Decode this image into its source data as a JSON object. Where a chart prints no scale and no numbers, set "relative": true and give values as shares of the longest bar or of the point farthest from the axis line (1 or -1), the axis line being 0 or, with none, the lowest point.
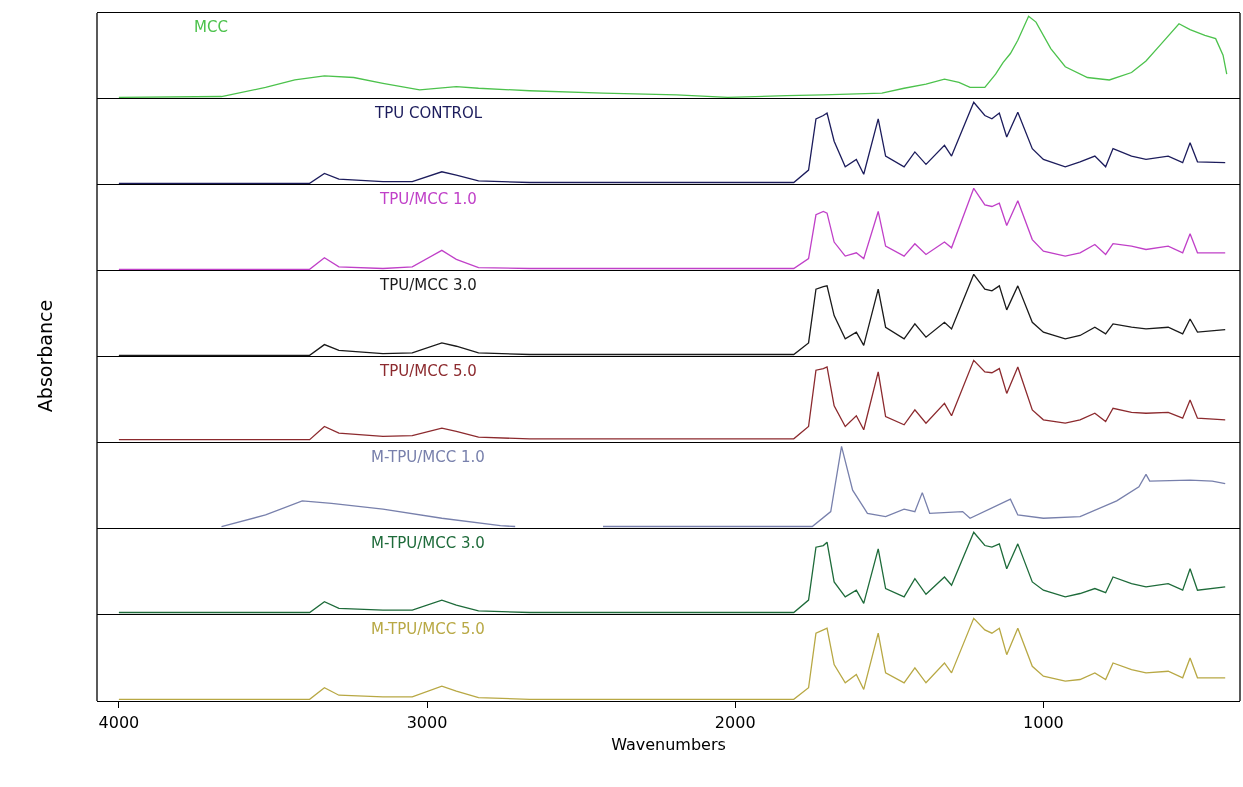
{
  "chart_data": [
    {
      "type": "line",
      "relative": true,
      "xlim": [
        4071,
        362
      ],
      "xticks": [
        4000,
        3000,
        2000,
        1000
      ],
      "tick_labels": false,
      "x": [
        4000,
        3667,
        3524,
        3429,
        3333,
        3238,
        3143,
        3024,
        2905,
        2833,
        2667,
        2429,
        2190,
        2024,
        1833,
        1714,
        1524,
        1452,
        1381,
        1321,
        1274,
        1238,
        1190,
        1155,
        1131,
        1107,
        1083,
        1048,
        1024,
        976,
        929,
        857,
        786,
        714,
        667,
        619,
        560,
        524,
        476,
        441,
        417,
        405
      ],
      "series": [
        {
          "name": "MCC",
          "color": "#4cc24c",
          "values": [
            0.02,
            0.03,
            0.14,
            0.23,
            0.28,
            0.26,
            0.19,
            0.11,
            0.15,
            0.13,
            0.1,
            0.07,
            0.05,
            0.02,
            0.04,
            0.05,
            0.07,
            0.13,
            0.18,
            0.24,
            0.2,
            0.14,
            0.14,
            0.3,
            0.44,
            0.55,
            0.71,
            1,
            0.93,
            0.61,
            0.39,
            0.26,
            0.23,
            0.32,
            0.46,
            0.66,
            0.91,
            0.84,
            0.77,
            0.73,
            0.53,
            0.3
          ]
        }
      ]
    },
    {
      "type": "line",
      "relative": true,
      "xlim": [
        4071,
        362
      ],
      "xticks": [
        4000,
        3000,
        2000,
        1000
      ],
      "tick_labels": false,
      "x": [
        4000,
        3381,
        3333,
        3286,
        3143,
        3048,
        2952,
        2905,
        2833,
        2667,
        1810,
        1762,
        1738,
        1714,
        1702,
        1679,
        1643,
        1607,
        1583,
        1536,
        1512,
        1452,
        1417,
        1381,
        1321,
        1298,
        1226,
        1190,
        1167,
        1143,
        1119,
        1083,
        1036,
        1000,
        929,
        881,
        833,
        798,
        774,
        714,
        667,
        595,
        548,
        524,
        500,
        410
      ],
      "series": [
        {
          "name": "TPU CONTROL",
          "color": "#1c1c5c",
          "values": [
            0.02,
            0.02,
            0.14,
            0.07,
            0.04,
            0.04,
            0.16,
            0.12,
            0.05,
            0.03,
            0.03,
            0.18,
            0.8,
            0.84,
            0.87,
            0.53,
            0.22,
            0.31,
            0.13,
            0.8,
            0.35,
            0.22,
            0.4,
            0.25,
            0.48,
            0.35,
            1,
            0.84,
            0.8,
            0.87,
            0.58,
            0.88,
            0.44,
            0.31,
            0.22,
            0.28,
            0.35,
            0.22,
            0.44,
            0.35,
            0.31,
            0.35,
            0.27,
            0.51,
            0.28,
            0.27
          ]
        }
      ]
    },
    {
      "type": "line",
      "relative": true,
      "xlim": [
        4071,
        362
      ],
      "xticks": [
        4000,
        3000,
        2000,
        1000
      ],
      "tick_labels": false,
      "x": [
        4000,
        3381,
        3333,
        3286,
        3143,
        3048,
        2952,
        2905,
        2833,
        2667,
        1810,
        1762,
        1738,
        1714,
        1702,
        1679,
        1643,
        1607,
        1583,
        1536,
        1512,
        1452,
        1417,
        1381,
        1321,
        1298,
        1226,
        1190,
        1167,
        1143,
        1119,
        1083,
        1036,
        1000,
        929,
        881,
        833,
        798,
        774,
        714,
        667,
        595,
        548,
        524,
        500,
        410
      ],
      "series": [
        {
          "name": "TPU/MCC 1.0",
          "color": "#c040c8",
          "values": [
            0.02,
            0.02,
            0.16,
            0.05,
            0.03,
            0.05,
            0.25,
            0.14,
            0.04,
            0.03,
            0.03,
            0.15,
            0.68,
            0.72,
            0.7,
            0.35,
            0.18,
            0.22,
            0.15,
            0.72,
            0.3,
            0.18,
            0.33,
            0.2,
            0.35,
            0.28,
            1,
            0.8,
            0.78,
            0.82,
            0.55,
            0.85,
            0.38,
            0.24,
            0.18,
            0.22,
            0.32,
            0.2,
            0.33,
            0.3,
            0.26,
            0.3,
            0.22,
            0.45,
            0.22,
            0.22
          ]
        }
      ]
    },
    {
      "type": "line",
      "relative": true,
      "xlim": [
        4071,
        362
      ],
      "xticks": [
        4000,
        3000,
        2000,
        1000
      ],
      "tick_labels": false,
      "x": [
        4000,
        3381,
        3333,
        3286,
        3143,
        3048,
        2952,
        2905,
        2833,
        2667,
        1810,
        1762,
        1738,
        1714,
        1702,
        1679,
        1643,
        1607,
        1583,
        1536,
        1512,
        1452,
        1417,
        1381,
        1321,
        1298,
        1226,
        1190,
        1167,
        1143,
        1119,
        1083,
        1036,
        1000,
        929,
        881,
        833,
        798,
        774,
        714,
        667,
        595,
        548,
        524,
        500,
        410
      ],
      "series": [
        {
          "name": "TPU/MCC 3.0",
          "color": "#1a1a1a",
          "values": [
            0.02,
            0.02,
            0.15,
            0.08,
            0.04,
            0.05,
            0.17,
            0.13,
            0.05,
            0.03,
            0.03,
            0.17,
            0.82,
            0.85,
            0.86,
            0.5,
            0.22,
            0.3,
            0.14,
            0.82,
            0.36,
            0.22,
            0.4,
            0.24,
            0.42,
            0.34,
            1,
            0.82,
            0.8,
            0.86,
            0.57,
            0.86,
            0.42,
            0.3,
            0.22,
            0.26,
            0.36,
            0.28,
            0.4,
            0.36,
            0.34,
            0.36,
            0.28,
            0.46,
            0.3,
            0.33
          ]
        }
      ]
    },
    {
      "type": "line",
      "relative": true,
      "xlim": [
        4071,
        362
      ],
      "xticks": [
        4000,
        3000,
        2000,
        1000
      ],
      "tick_labels": false,
      "x": [
        4000,
        3381,
        3333,
        3286,
        3143,
        3048,
        2952,
        2905,
        2833,
        2667,
        1810,
        1762,
        1738,
        1714,
        1702,
        1679,
        1643,
        1607,
        1583,
        1536,
        1512,
        1452,
        1417,
        1381,
        1321,
        1298,
        1226,
        1190,
        1167,
        1143,
        1119,
        1083,
        1036,
        1000,
        929,
        881,
        833,
        798,
        774,
        714,
        667,
        595,
        548,
        524,
        500,
        410
      ],
      "ylabel": "Absorbance",
      "series": [
        {
          "name": "TPU/MCC 5.0",
          "color": "#8c2a2e",
          "values": [
            0.04,
            0.04,
            0.2,
            0.12,
            0.08,
            0.09,
            0.18,
            0.14,
            0.07,
            0.05,
            0.05,
            0.2,
            0.88,
            0.9,
            0.92,
            0.45,
            0.2,
            0.33,
            0.16,
            0.86,
            0.32,
            0.22,
            0.4,
            0.24,
            0.48,
            0.33,
            1,
            0.86,
            0.85,
            0.9,
            0.6,
            0.92,
            0.4,
            0.28,
            0.24,
            0.28,
            0.36,
            0.26,
            0.42,
            0.37,
            0.36,
            0.37,
            0.3,
            0.52,
            0.3,
            0.28
          ]
        }
      ]
    },
    {
      "type": "line",
      "relative": true,
      "xlim": [
        4071,
        362
      ],
      "xticks": [
        4000,
        3000,
        2000,
        1000
      ],
      "tick_labels": false,
      "x": [
        3667,
        3524,
        3405,
        3310,
        3143,
        2952,
        2762,
        2714,
        2600,
        2429,
        1750,
        1690,
        1655,
        1619,
        1571,
        1512,
        1452,
        1417,
        1393,
        1369,
        1262,
        1238,
        1107,
        1083,
        1000,
        881,
        762,
        690,
        667,
        655,
        524,
        452,
        410
      ],
      "series": [
        {
          "name": "M-TPU/MCC 1.0",
          "color": "#7880ac",
          "values": [
            0.03,
            0.17,
            0.34,
            0.31,
            0.24,
            0.13,
            0.04,
            0.03,
            null,
            0.03,
            0.03,
            0.21,
            1,
            0.47,
            0.19,
            0.15,
            0.24,
            0.21,
            0.44,
            0.19,
            0.21,
            0.13,
            0.36,
            0.17,
            0.13,
            0.15,
            0.34,
            0.51,
            0.66,
            0.58,
            0.59,
            0.58,
            0.55
          ]
        }
      ]
    },
    {
      "type": "line",
      "relative": true,
      "xlim": [
        4071,
        362
      ],
      "xticks": [
        4000,
        3000,
        2000,
        1000
      ],
      "tick_labels": false,
      "x": [
        4000,
        3381,
        3333,
        3286,
        3143,
        3048,
        2952,
        2905,
        2833,
        2667,
        1810,
        1762,
        1738,
        1714,
        1702,
        1679,
        1643,
        1607,
        1583,
        1536,
        1512,
        1452,
        1417,
        1381,
        1321,
        1298,
        1226,
        1190,
        1167,
        1143,
        1119,
        1083,
        1036,
        1000,
        929,
        881,
        833,
        798,
        774,
        714,
        667,
        595,
        548,
        524,
        500,
        410
      ],
      "series": [
        {
          "name": "M-TPU/MCC 3.0",
          "color": "#1e6b3a",
          "values": [
            0.03,
            0.03,
            0.16,
            0.08,
            0.06,
            0.06,
            0.18,
            0.12,
            0.05,
            0.03,
            0.03,
            0.18,
            0.82,
            0.84,
            0.88,
            0.4,
            0.22,
            0.3,
            0.14,
            0.8,
            0.32,
            0.22,
            0.44,
            0.25,
            0.46,
            0.36,
            1,
            0.84,
            0.82,
            0.86,
            0.56,
            0.86,
            0.4,
            0.3,
            0.22,
            0.26,
            0.32,
            0.27,
            0.46,
            0.38,
            0.34,
            0.38,
            0.3,
            0.56,
            0.3,
            0.34
          ]
        }
      ]
    },
    {
      "type": "line",
      "relative": true,
      "xlabel": "Wavenumbers",
      "xlim": [
        4071,
        362
      ],
      "xticks": [
        4000,
        3000,
        2000,
        1000
      ],
      "tick_labels": "x",
      "x": [
        4000,
        3381,
        3333,
        3286,
        3143,
        3048,
        2952,
        2905,
        2833,
        2667,
        1810,
        1762,
        1738,
        1714,
        1702,
        1679,
        1643,
        1607,
        1583,
        1536,
        1512,
        1452,
        1417,
        1381,
        1321,
        1298,
        1226,
        1190,
        1167,
        1143,
        1119,
        1083,
        1036,
        1000,
        929,
        881,
        833,
        798,
        774,
        714,
        667,
        595,
        548,
        524,
        500,
        410
      ],
      "series": [
        {
          "name": "M-TPU/MCC 5.0",
          "color": "#b8a844",
          "values": [
            0.02,
            0.02,
            0.16,
            0.07,
            0.05,
            0.05,
            0.18,
            0.12,
            0.04,
            0.02,
            0.02,
            0.16,
            0.82,
            0.86,
            0.88,
            0.44,
            0.22,
            0.32,
            0.14,
            0.82,
            0.34,
            0.22,
            0.4,
            0.22,
            0.46,
            0.34,
            1,
            0.86,
            0.82,
            0.88,
            0.56,
            0.88,
            0.42,
            0.3,
            0.24,
            0.26,
            0.34,
            0.26,
            0.46,
            0.38,
            0.34,
            0.36,
            0.28,
            0.52,
            0.28,
            0.28
          ]
        }
      ]
    }
  ]
}
